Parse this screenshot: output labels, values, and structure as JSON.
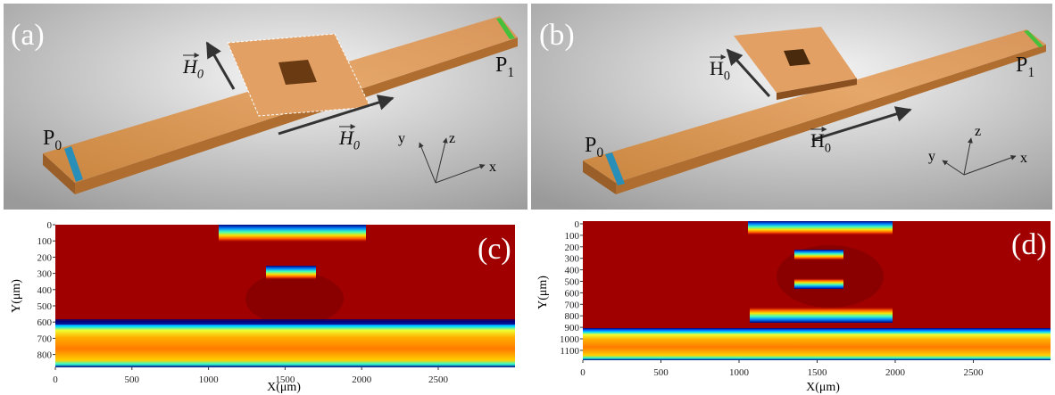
{
  "panels": [
    {
      "label": "(a)",
      "port_in": {
        "name": "P",
        "sub": "0"
      },
      "port_out": {
        "name": "P",
        "sub": "1"
      },
      "field_labels": [
        {
          "name": "H",
          "sub": "0"
        },
        {
          "name": "H",
          "sub": "0"
        }
      ],
      "axes": [
        "x",
        "y",
        "z"
      ]
    },
    {
      "label": "(b)",
      "port_in": {
        "name": "P",
        "sub": "0"
      },
      "port_out": {
        "name": "P",
        "sub": "1"
      },
      "field_labels": [
        {
          "name": "H",
          "sub": "0"
        },
        {
          "name": "H",
          "sub": "0"
        }
      ],
      "axes": [
        "x",
        "y",
        "z"
      ]
    },
    {
      "label": "(c)",
      "x_label": "X(μm)",
      "y_label": "Y(μm)",
      "xticks": [
        0,
        500,
        1000,
        1500,
        2000,
        2500
      ],
      "yticks": [
        0,
        100,
        200,
        300,
        400,
        500,
        600,
        700,
        800
      ]
    },
    {
      "label": "(d)",
      "x_label": "X(μm)",
      "y_label": "Y(μm)",
      "xticks": [
        0,
        500,
        1000,
        1500,
        2000,
        2500
      ],
      "yticks": [
        0,
        100,
        200,
        300,
        400,
        500,
        600,
        700,
        800,
        900,
        1000,
        1100
      ]
    }
  ]
}
